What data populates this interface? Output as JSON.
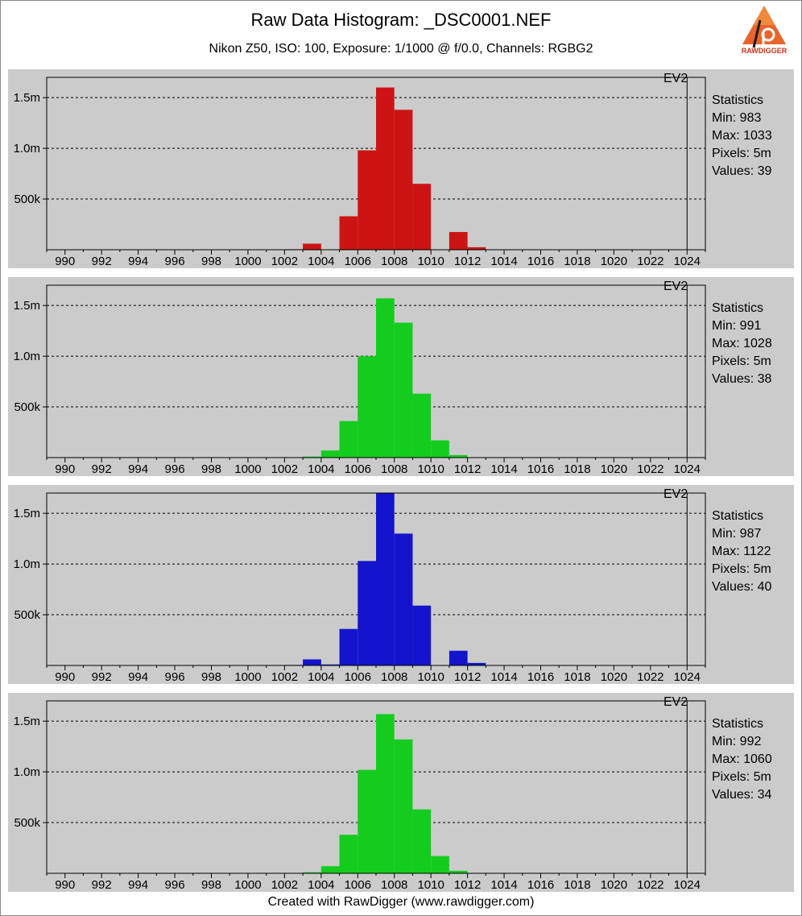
{
  "header": {
    "title": "Raw Data Histogram: _DSC0001.NEF",
    "subtitle": "Nikon Z50, ISO: 100, Exposure: 1/1000 @ f/0.0, Channels: RGBG2",
    "logo_text": "RAWDIGGER"
  },
  "footer": {
    "text": "Created with RawDigger (www.rawdigger.com)"
  },
  "colors": {
    "R": "#cc1414",
    "G": "#14cc1e",
    "B": "#1414cc",
    "G2": "#14cc1e",
    "panel": "#cbcbcb"
  },
  "chart_data": [
    {
      "type": "bar",
      "channel": "R",
      "ev_label": "EV2",
      "xlim": [
        989,
        1025
      ],
      "ylim": [
        0,
        1700000
      ],
      "x_ticks": [
        990,
        992,
        994,
        996,
        998,
        1000,
        1002,
        1004,
        1006,
        1008,
        1010,
        1012,
        1014,
        1016,
        1018,
        1020,
        1022,
        1024
      ],
      "y_ticks": [
        {
          "value": 500000,
          "label": "500k"
        },
        {
          "value": 1000000,
          "label": "1.0m"
        },
        {
          "value": 1500000,
          "label": "1.5m"
        }
      ],
      "bins": [
        {
          "x0": 1002,
          "x1": 1003,
          "value": 5000
        },
        {
          "x0": 1003,
          "x1": 1004,
          "value": 60000
        },
        {
          "x0": 1005,
          "x1": 1006,
          "value": 330000
        },
        {
          "x0": 1006,
          "x1": 1007,
          "value": 980000
        },
        {
          "x0": 1007,
          "x1": 1008,
          "value": 1600000
        },
        {
          "x0": 1008,
          "x1": 1009,
          "value": 1380000
        },
        {
          "x0": 1009,
          "x1": 1010,
          "value": 650000
        },
        {
          "x0": 1011,
          "x1": 1012,
          "value": 175000
        },
        {
          "x0": 1012,
          "x1": 1013,
          "value": 25000
        }
      ],
      "stats": {
        "heading": "Statistics",
        "min": "Min: 983",
        "max": "Max: 1033",
        "pixels": "Pixels: 5m",
        "values": "Values: 39"
      }
    },
    {
      "type": "bar",
      "channel": "G",
      "ev_label": "EV2",
      "xlim": [
        989,
        1025
      ],
      "ylim": [
        0,
        1700000
      ],
      "x_ticks": [
        990,
        992,
        994,
        996,
        998,
        1000,
        1002,
        1004,
        1006,
        1008,
        1010,
        1012,
        1014,
        1016,
        1018,
        1020,
        1022,
        1024
      ],
      "y_ticks": [
        {
          "value": 500000,
          "label": "500k"
        },
        {
          "value": 1000000,
          "label": "1.0m"
        },
        {
          "value": 1500000,
          "label": "1.5m"
        }
      ],
      "bins": [
        {
          "x0": 1003,
          "x1": 1004,
          "value": 10000
        },
        {
          "x0": 1004,
          "x1": 1005,
          "value": 70000
        },
        {
          "x0": 1005,
          "x1": 1006,
          "value": 360000
        },
        {
          "x0": 1006,
          "x1": 1007,
          "value": 1000000
        },
        {
          "x0": 1007,
          "x1": 1008,
          "value": 1570000
        },
        {
          "x0": 1008,
          "x1": 1009,
          "value": 1330000
        },
        {
          "x0": 1009,
          "x1": 1010,
          "value": 630000
        },
        {
          "x0": 1010,
          "x1": 1011,
          "value": 170000
        },
        {
          "x0": 1011,
          "x1": 1012,
          "value": 25000
        }
      ],
      "stats": {
        "heading": "Statistics",
        "min": "Min: 991",
        "max": "Max: 1028",
        "pixels": "Pixels: 5m",
        "values": "Values: 38"
      }
    },
    {
      "type": "bar",
      "channel": "B",
      "ev_label": "EV2",
      "xlim": [
        989,
        1025
      ],
      "ylim": [
        0,
        1700000
      ],
      "x_ticks": [
        990,
        992,
        994,
        996,
        998,
        1000,
        1002,
        1004,
        1006,
        1008,
        1010,
        1012,
        1014,
        1016,
        1018,
        1020,
        1022,
        1024
      ],
      "y_ticks": [
        {
          "value": 500000,
          "label": "500k"
        },
        {
          "value": 1000000,
          "label": "1.0m"
        },
        {
          "value": 1500000,
          "label": "1.5m"
        }
      ],
      "bins": [
        {
          "x0": 1002,
          "x1": 1003,
          "value": 5000
        },
        {
          "x0": 1003,
          "x1": 1004,
          "value": 60000
        },
        {
          "x0": 1004,
          "x1": 1005,
          "value": 10000
        },
        {
          "x0": 1005,
          "x1": 1006,
          "value": 360000
        },
        {
          "x0": 1006,
          "x1": 1007,
          "value": 1030000
        },
        {
          "x0": 1007,
          "x1": 1008,
          "value": 1700000
        },
        {
          "x0": 1008,
          "x1": 1009,
          "value": 1300000
        },
        {
          "x0": 1009,
          "x1": 1010,
          "value": 590000
        },
        {
          "x0": 1011,
          "x1": 1012,
          "value": 145000
        },
        {
          "x0": 1012,
          "x1": 1013,
          "value": 25000
        }
      ],
      "stats": {
        "heading": "Statistics",
        "min": "Min: 987",
        "max": "Max: 1122",
        "pixels": "Pixels: 5m",
        "values": "Values: 40"
      }
    },
    {
      "type": "bar",
      "channel": "G2",
      "ev_label": "EV2",
      "xlim": [
        989,
        1025
      ],
      "ylim": [
        0,
        1700000
      ],
      "x_ticks": [
        990,
        992,
        994,
        996,
        998,
        1000,
        1002,
        1004,
        1006,
        1008,
        1010,
        1012,
        1014,
        1016,
        1018,
        1020,
        1022,
        1024
      ],
      "y_ticks": [
        {
          "value": 500000,
          "label": "500k"
        },
        {
          "value": 1000000,
          "label": "1.0m"
        },
        {
          "value": 1500000,
          "label": "1.5m"
        }
      ],
      "bins": [
        {
          "x0": 1003,
          "x1": 1004,
          "value": 10000
        },
        {
          "x0": 1004,
          "x1": 1005,
          "value": 70000
        },
        {
          "x0": 1005,
          "x1": 1006,
          "value": 380000
        },
        {
          "x0": 1006,
          "x1": 1007,
          "value": 1020000
        },
        {
          "x0": 1007,
          "x1": 1008,
          "value": 1570000
        },
        {
          "x0": 1008,
          "x1": 1009,
          "value": 1320000
        },
        {
          "x0": 1009,
          "x1": 1010,
          "value": 630000
        },
        {
          "x0": 1010,
          "x1": 1011,
          "value": 170000
        },
        {
          "x0": 1011,
          "x1": 1012,
          "value": 25000
        }
      ],
      "stats": {
        "heading": "Statistics",
        "min": "Min: 992",
        "max": "Max: 1060",
        "pixels": "Pixels: 5m",
        "values": "Values: 34"
      }
    }
  ]
}
